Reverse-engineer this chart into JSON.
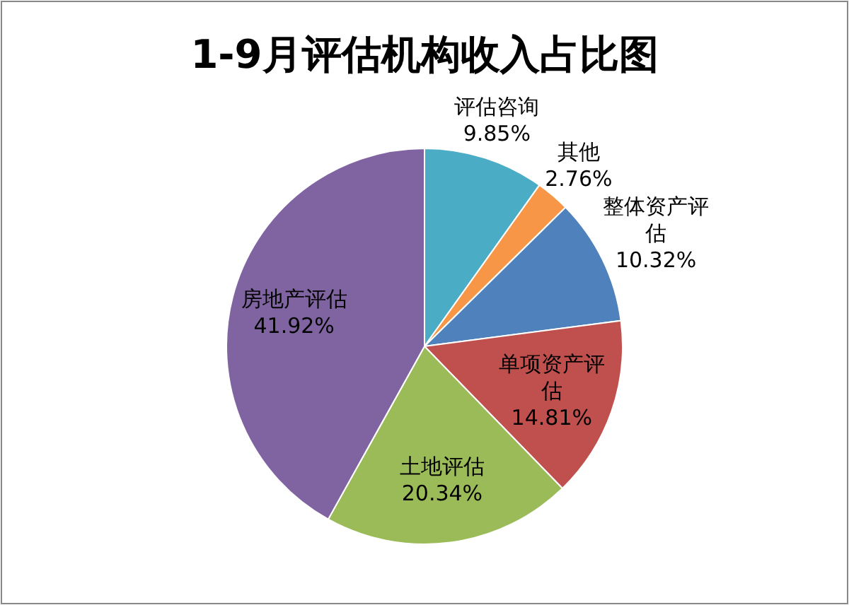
{
  "chart_data": {
    "type": "pie",
    "title": "1-9月评估机构收入占比图",
    "categories": [
      "评估咨询",
      "其他",
      "整体资产评估",
      "单项资产评估",
      "土地评估",
      "房地产评估"
    ],
    "values": [
      9.85,
      2.76,
      10.32,
      14.81,
      20.34,
      41.92
    ],
    "colors": [
      "#4bacc6",
      "#f79646",
      "#4f81bd",
      "#c0504d",
      "#9bbb59",
      "#8064a2"
    ],
    "value_labels": [
      "9.85%",
      "2.76%",
      "10.32%",
      "14.81%",
      "20.34%",
      "41.92%"
    ]
  }
}
